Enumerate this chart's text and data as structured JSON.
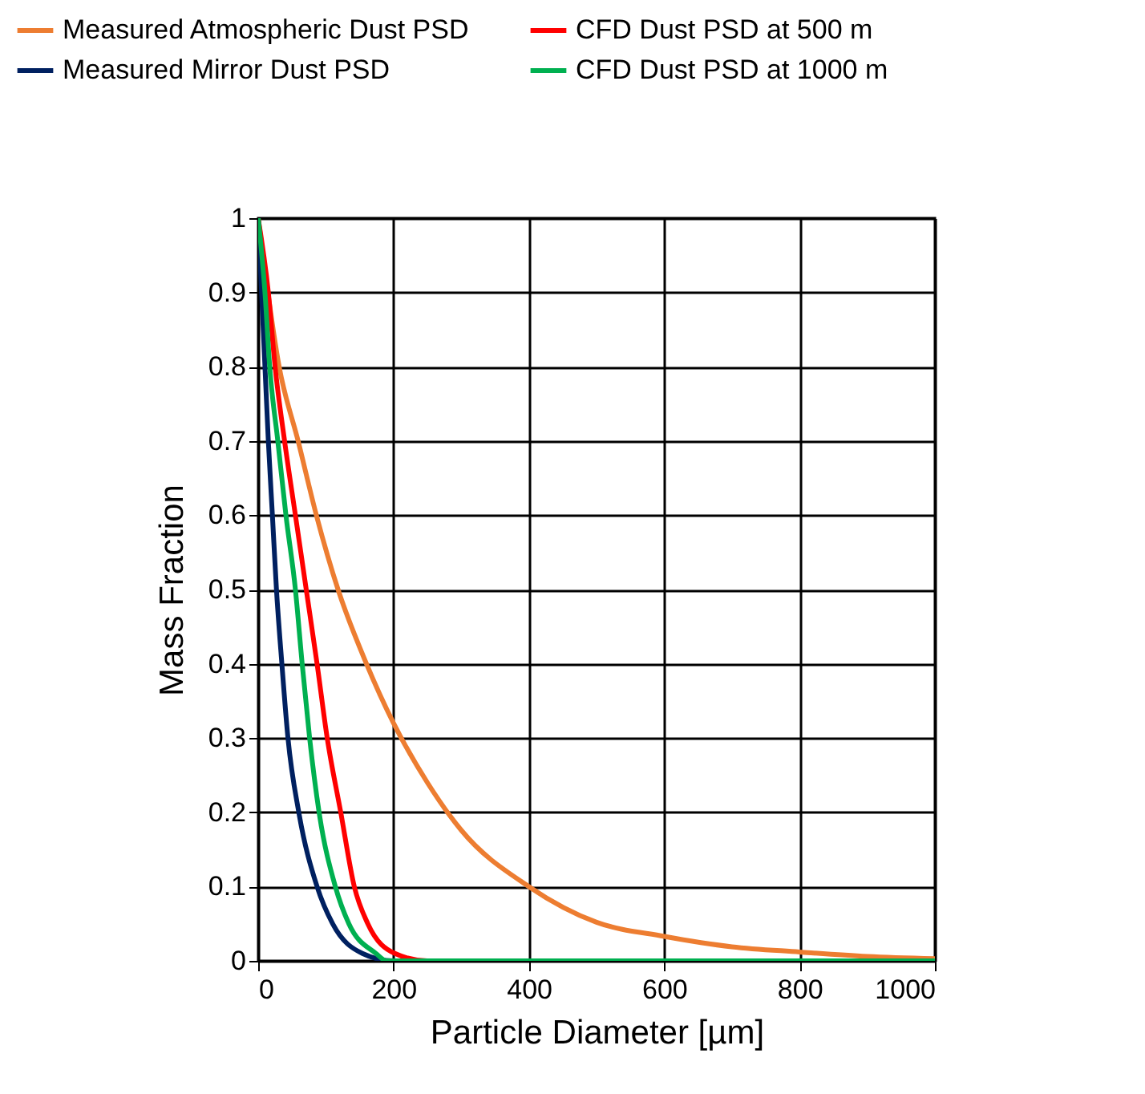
{
  "chart_data": {
    "type": "line",
    "xlabel": "Particle Diameter [µm]",
    "ylabel": "Mass Fraction",
    "xlim": [
      0,
      1000
    ],
    "xticks": [
      0,
      200,
      400,
      600,
      800,
      1000
    ],
    "ylim": [
      0,
      1
    ],
    "yticks": [
      0,
      0.1,
      0.2,
      0.3,
      0.4,
      0.5,
      0.6,
      0.7,
      0.8,
      0.9,
      1
    ],
    "grid": true,
    "legend": "top",
    "marker": "none",
    "line_style": "solid",
    "series": [
      {
        "name": "Measured Atmospheric Dust PSD",
        "color": "#ed7d31",
        "x": [
          0,
          31,
          59,
          86,
          118,
          160,
          200,
          250,
          300,
          400,
          500,
          600,
          700,
          800,
          900,
          1000
        ],
        "values": [
          1,
          0.8,
          0.7,
          0.6,
          0.5,
          0.4,
          0.32,
          0.24,
          0.176,
          0.1,
          0.052,
          0.033,
          0.019,
          0.012,
          0.006,
          0.003
        ]
      },
      {
        "name": "CFD Dust PSD at 500 m",
        "color": "#ff0000",
        "x": [
          0,
          15,
          25,
          39,
          55,
          71,
          87,
          102,
          122,
          142,
          162,
          202,
          250,
          1000
        ],
        "values": [
          1,
          0.9,
          0.8,
          0.7,
          0.6,
          0.5,
          0.4,
          0.3,
          0.2,
          0.1,
          0.05,
          0.01,
          0,
          0
        ]
      },
      {
        "name": "Measured Mirror Dust PSD",
        "color": "#002060",
        "x": [
          0,
          5,
          10,
          15,
          21,
          27,
          35,
          44,
          60,
          87,
          110,
          154,
          200,
          1000
        ],
        "values": [
          1,
          0.9,
          0.8,
          0.7,
          0.6,
          0.5,
          0.4,
          0.3,
          0.2,
          0.1,
          0.05,
          0.01,
          0,
          0
        ]
      },
      {
        "name": "CFD Dust PSD at 1000 m",
        "color": "#00b050",
        "x": [
          0,
          10,
          17,
          29,
          41,
          55,
          65,
          76,
          90,
          114,
          134,
          174,
          190,
          1000
        ],
        "values": [
          1,
          0.9,
          0.8,
          0.7,
          0.6,
          0.5,
          0.4,
          0.3,
          0.2,
          0.1,
          0.05,
          0.01,
          0,
          0
        ]
      }
    ]
  }
}
